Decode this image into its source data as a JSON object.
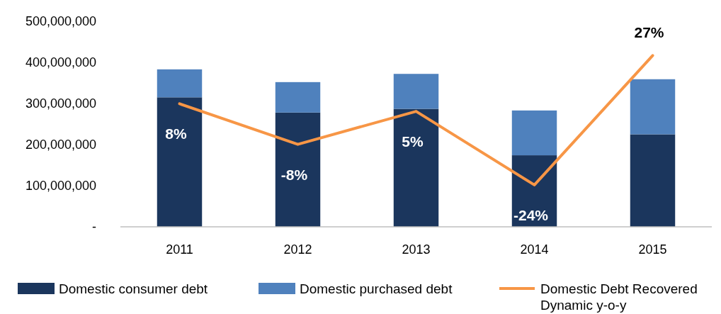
{
  "chart_data": {
    "type": "bar",
    "stacked": true,
    "categories": [
      "2011",
      "2012",
      "2013",
      "2014",
      "2015"
    ],
    "series": [
      {
        "name": "Domestic consumer debt",
        "color": "#1b365d",
        "values": [
          315000000,
          278000000,
          287000000,
          174000000,
          225000000
        ]
      },
      {
        "name": "Domestic purchased debt",
        "color": "#4f81bd",
        "values": [
          68000000,
          74000000,
          85000000,
          109000000,
          134000000
        ]
      },
      {
        "name": "Domestic Debt Recovered Dynamic y-o-y",
        "type": "line",
        "axis": "y2",
        "color": "#f79646",
        "values": [
          8,
          -8,
          5,
          -24,
          27
        ],
        "value_labels": [
          "8%",
          "-8%",
          "5%",
          "-24%",
          "27%"
        ]
      }
    ],
    "ylim": [
      0,
      500000000
    ],
    "yticks": [
      {
        "value": 0,
        "label": "-"
      },
      {
        "value": 100000000,
        "label": "100,000,000"
      },
      {
        "value": 200000000,
        "label": "200,000,000"
      },
      {
        "value": 300000000,
        "label": "300,000,000"
      },
      {
        "value": 400000000,
        "label": "400,000,000"
      },
      {
        "value": 500000000,
        "label": "500,000,000"
      }
    ],
    "tick_labels": "xy",
    "legend": "bottom"
  }
}
